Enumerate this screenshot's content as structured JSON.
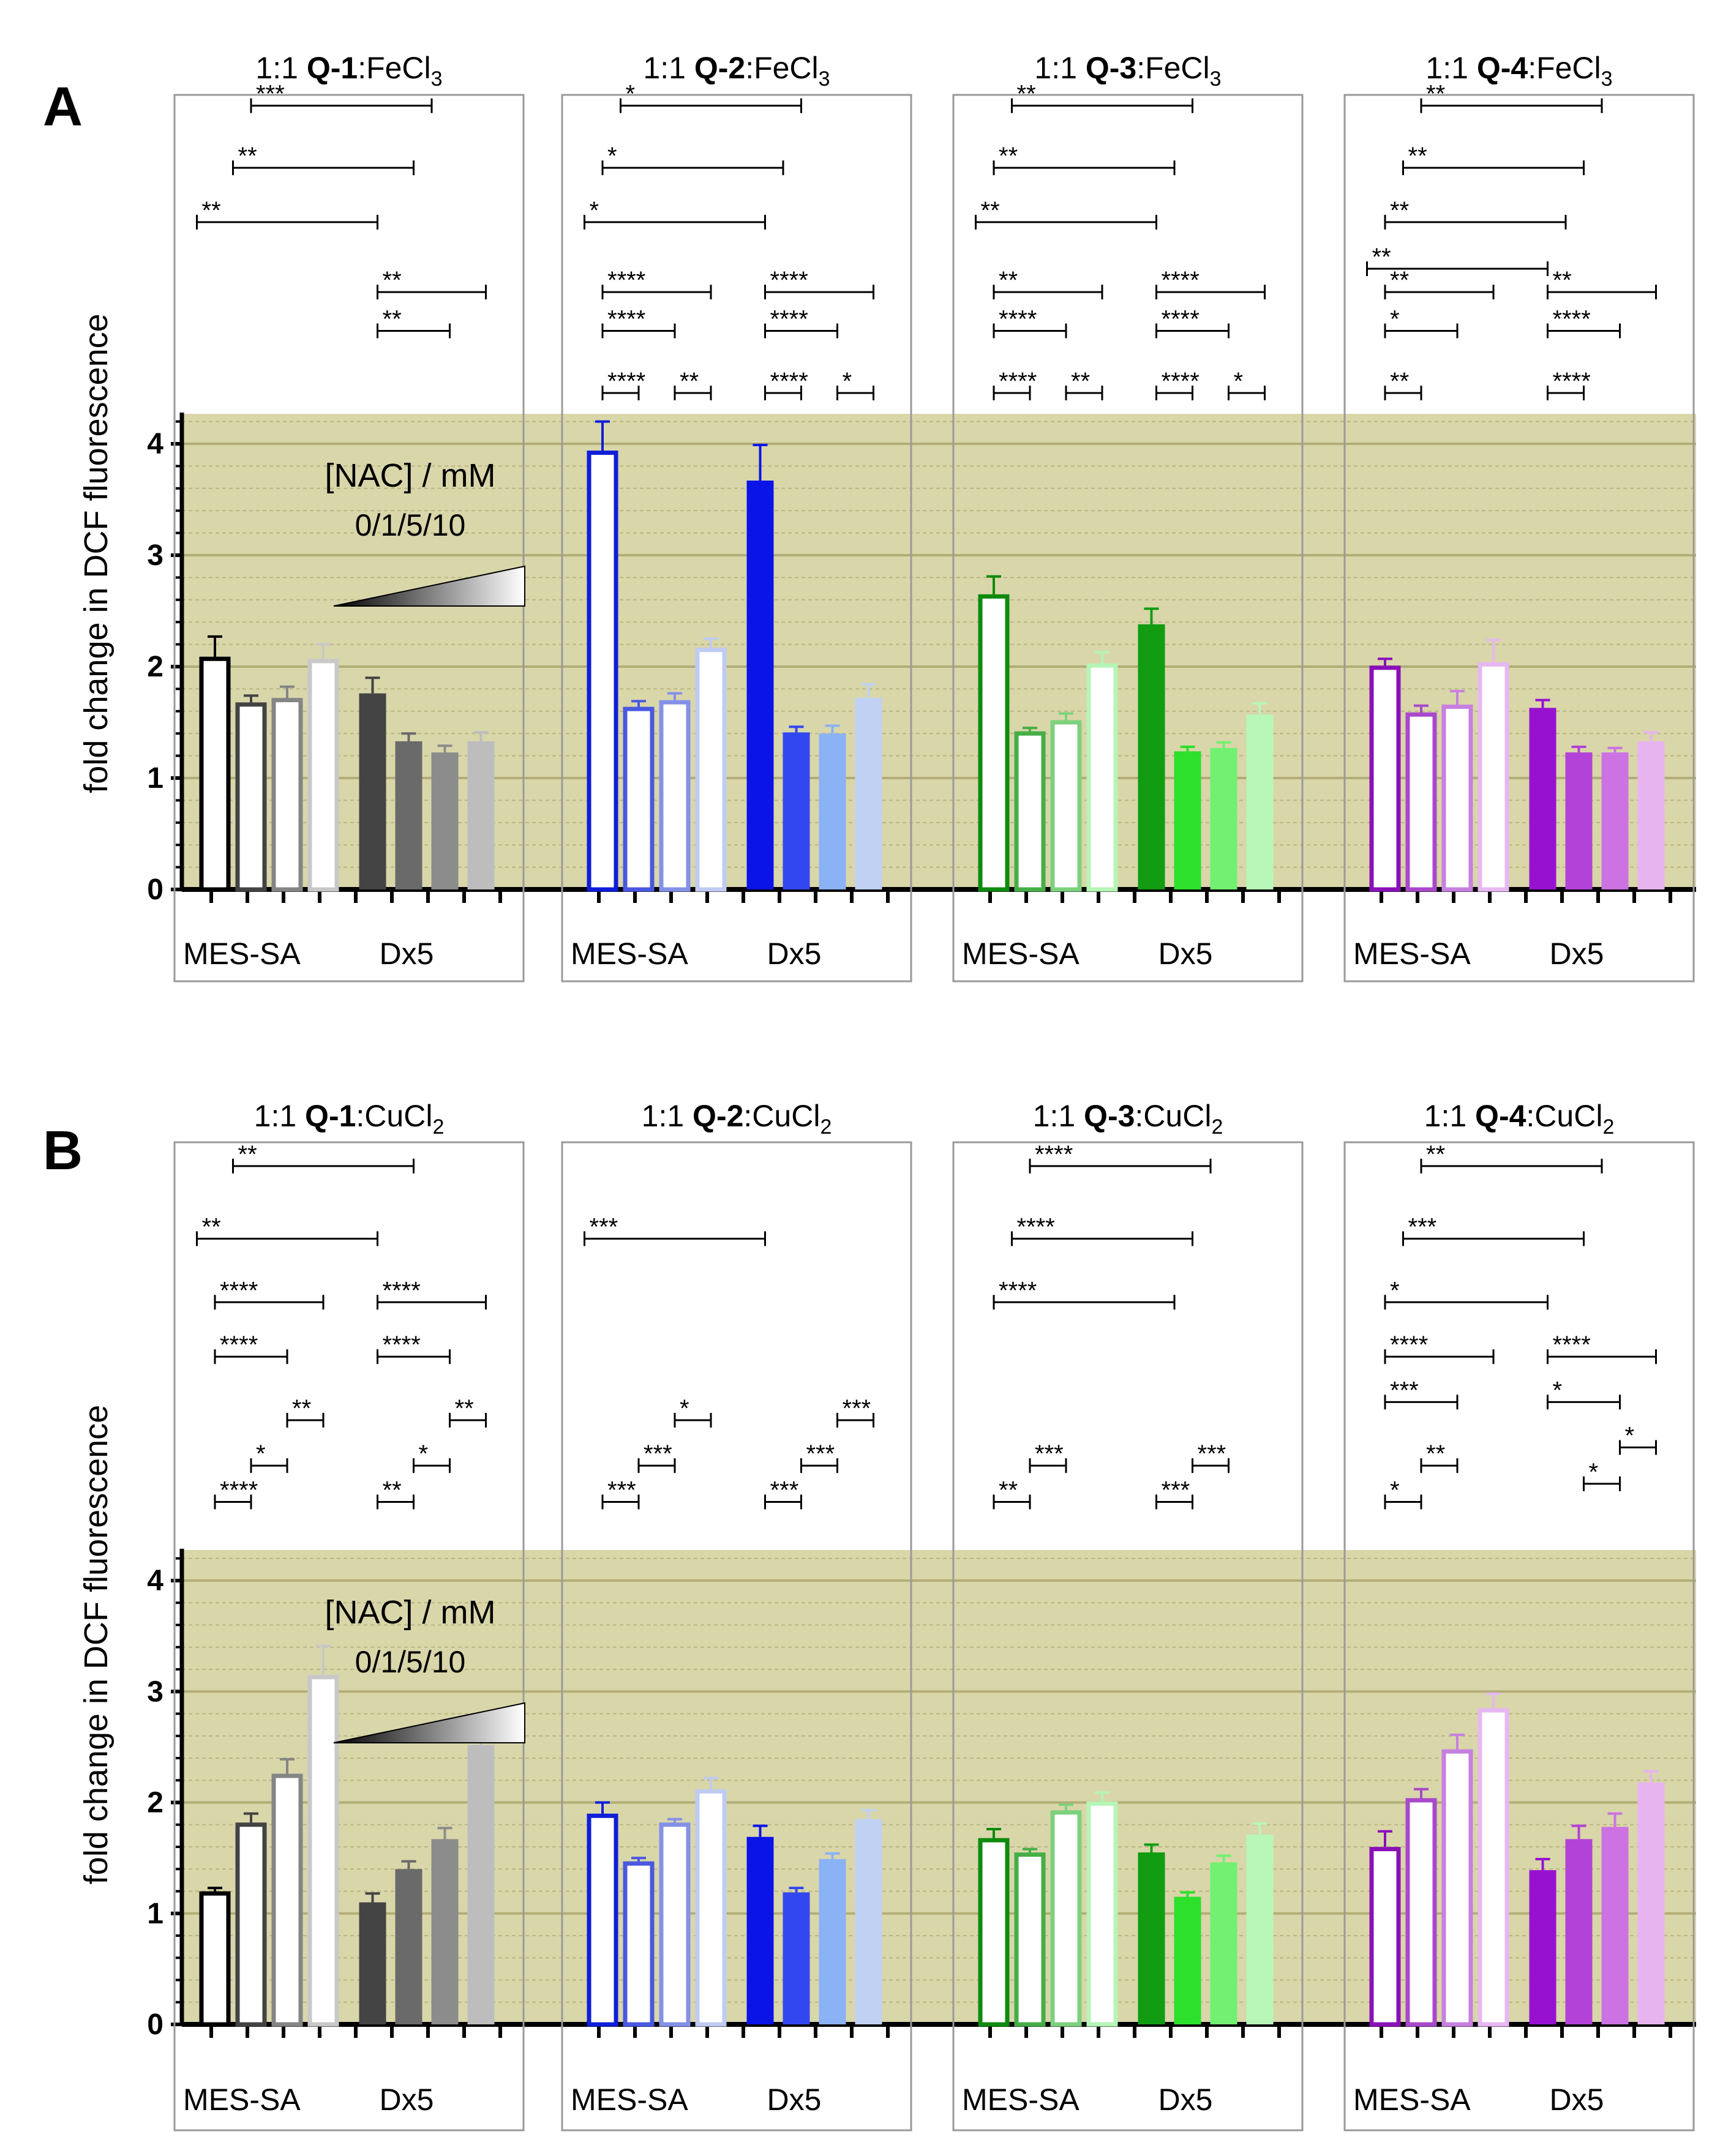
{
  "figure": {
    "nac_label": "[NAC] / mM",
    "nac_values": "0/1/5/10",
    "y_axis_label": "fold change in DCF fluorescence",
    "colors": {
      "band": "#D9D6AA",
      "gridline": "#B3AD77",
      "panel_border": "#9A9A9A"
    }
  },
  "chart_data": [
    {
      "panel": "A",
      "type": "bar",
      "ylabel": "fold change in DCF fluorescence",
      "ylim": [
        0,
        4.25
      ],
      "yticks": [
        "0",
        "1",
        "2",
        "3",
        "4"
      ],
      "legend": {
        "title": "[NAC] / mM",
        "values": "0/1/5/10"
      },
      "subpanels": [
        {
          "title_pre": "1:1 ",
          "title_bold": "Q-1",
          "title_mid": ":FeCl",
          "title_sub": "3",
          "palette": {
            "dark": "#000000",
            "light": "#C8C8C8",
            "dx": [
              "#444444",
              "#6A6A6A",
              "#8C8C8C",
              "#BDBDBD"
            ]
          },
          "groups": [
            {
              "label": "MES-SA",
              "values": [
                2.07,
                1.66,
                1.7,
                2.05
              ],
              "errors": [
                0.2,
                0.08,
                0.12,
                0.15
              ]
            },
            {
              "label": "Dx5",
              "values": [
                1.76,
                1.33,
                1.23,
                1.33
              ],
              "errors": [
                0.14,
                0.07,
                0.06,
                0.08
              ]
            }
          ],
          "annotations": [
            {
              "label": "***",
              "from": 1,
              "to": 6,
              "h": 2.0
            },
            {
              "label": "**",
              "from": 0.5,
              "to": 5.5,
              "h": 1.6
            },
            {
              "label": "**",
              "from": -0.5,
              "to": 4.5,
              "h": 1.25
            },
            {
              "label": "**",
              "from": 4.5,
              "to": 7.5,
              "h": 0.8
            },
            {
              "label": "**",
              "from": 4.5,
              "to": 6.5,
              "h": 0.55
            }
          ]
        },
        {
          "title_pre": "1:1 ",
          "title_bold": "Q-2",
          "title_mid": ":FeCl",
          "title_sub": "3",
          "palette": {
            "dark": "#0F1ED8",
            "light": "#BFCBF2",
            "dx": [
              "#0A14E6",
              "#3347F0",
              "#8BB2F4",
              "#C1D1F4"
            ]
          },
          "groups": [
            {
              "label": "MES-SA",
              "values": [
                3.92,
                1.62,
                1.68,
                2.15
              ],
              "errors": [
                0.28,
                0.07,
                0.08,
                0.1
              ]
            },
            {
              "label": "Dx5",
              "values": [
                3.67,
                1.41,
                1.4,
                1.72
              ],
              "errors": [
                0.32,
                0.05,
                0.07,
                0.12
              ]
            }
          ],
          "annotations": [
            {
              "label": "*",
              "from": 0.5,
              "to": 5.5,
              "h": 2.0
            },
            {
              "label": "*",
              "from": 0,
              "to": 5,
              "h": 1.6
            },
            {
              "label": "*",
              "from": -0.5,
              "to": 4.5,
              "h": 1.25
            },
            {
              "label": "****",
              "from": 0,
              "to": 3,
              "h": 0.8
            },
            {
              "label": "****",
              "from": 0,
              "to": 2,
              "h": 0.55
            },
            {
              "label": "****",
              "from": 0,
              "to": 1,
              "h": 0.15
            },
            {
              "label": "**",
              "from": 2,
              "to": 3,
              "h": 0.15
            },
            {
              "label": "****",
              "from": 4.5,
              "to": 7.5,
              "h": 0.8
            },
            {
              "label": "****",
              "from": 4.5,
              "to": 6.5,
              "h": 0.55
            },
            {
              "label": "****",
              "from": 4.5,
              "to": 5.5,
              "h": 0.15
            },
            {
              "label": "*",
              "from": 6.5,
              "to": 7.5,
              "h": 0.15
            }
          ]
        },
        {
          "title_pre": "1:1 ",
          "title_bold": "Q-3",
          "title_mid": ":FeCl",
          "title_sub": "3",
          "palette": {
            "dark": "#0E8A0E",
            "light": "#B5F5B5",
            "dx": [
              "#119C11",
              "#2CE02C",
              "#72F072",
              "#B8F7B8"
            ]
          },
          "groups": [
            {
              "label": "MES-SA",
              "values": [
                2.63,
                1.4,
                1.5,
                2.01
              ],
              "errors": [
                0.18,
                0.05,
                0.08,
                0.12
              ]
            },
            {
              "label": "Dx5",
              "values": [
                2.38,
                1.24,
                1.27,
                1.57
              ],
              "errors": [
                0.14,
                0.04,
                0.05,
                0.1
              ]
            }
          ],
          "annotations": [
            {
              "label": "**",
              "from": 0.5,
              "to": 5.5,
              "h": 2.0
            },
            {
              "label": "**",
              "from": 0,
              "to": 5,
              "h": 1.6
            },
            {
              "label": "**",
              "from": -0.5,
              "to": 4.5,
              "h": 1.25
            },
            {
              "label": "**",
              "from": 0,
              "to": 3,
              "h": 0.8
            },
            {
              "label": "****",
              "from": 0,
              "to": 2,
              "h": 0.55
            },
            {
              "label": "****",
              "from": 0,
              "to": 1,
              "h": 0.15
            },
            {
              "label": "**",
              "from": 2,
              "to": 3,
              "h": 0.15
            },
            {
              "label": "****",
              "from": 4.5,
              "to": 7.5,
              "h": 0.8
            },
            {
              "label": "****",
              "from": 4.5,
              "to": 6.5,
              "h": 0.55
            },
            {
              "label": "****",
              "from": 4.5,
              "to": 5.5,
              "h": 0.15
            },
            {
              "label": "*",
              "from": 6.5,
              "to": 7.5,
              "h": 0.15
            }
          ]
        },
        {
          "title_pre": "1:1 ",
          "title_bold": "Q-4",
          "title_mid": ":FeCl",
          "title_sub": "3",
          "palette": {
            "dark": "#8A10B8",
            "light": "#E6B8F2",
            "dx": [
              "#9612D0",
              "#B242D8",
              "#CC72E2",
              "#E8B4F0"
            ]
          },
          "groups": [
            {
              "label": "MES-SA",
              "values": [
                1.99,
                1.57,
                1.64,
                2.02
              ],
              "errors": [
                0.08,
                0.08,
                0.14,
                0.22
              ]
            },
            {
              "label": "Dx5",
              "values": [
                1.63,
                1.23,
                1.23,
                1.33
              ],
              "errors": [
                0.07,
                0.05,
                0.04,
                0.08
              ]
            }
          ],
          "annotations": [
            {
              "label": "**",
              "from": 1,
              "to": 6,
              "h": 2.0
            },
            {
              "label": "**",
              "from": 0.5,
              "to": 5.5,
              "h": 1.6
            },
            {
              "label": "**",
              "from": 0,
              "to": 5,
              "h": 1.25
            },
            {
              "label": "**",
              "from": -0.5,
              "to": 4.5,
              "h": 0.95
            },
            {
              "label": "**",
              "from": 0,
              "to": 3,
              "h": 0.8
            },
            {
              "label": "*",
              "from": 0,
              "to": 2,
              "h": 0.55
            },
            {
              "label": "**",
              "from": 0,
              "to": 1,
              "h": 0.15
            },
            {
              "label": "**",
              "from": 4.5,
              "to": 7.5,
              "h": 0.8
            },
            {
              "label": "****",
              "from": 4.5,
              "to": 6.5,
              "h": 0.55
            },
            {
              "label": "****",
              "from": 4.5,
              "to": 5.5,
              "h": 0.15
            }
          ]
        }
      ]
    },
    {
      "panel": "B",
      "type": "bar",
      "ylabel": "fold change in DCF fluorescence",
      "ylim": [
        0,
        4.25
      ],
      "yticks": [
        "0",
        "1",
        "2",
        "3",
        "4"
      ],
      "legend": {
        "title": "[NAC] / mM",
        "values": "0/1/5/10"
      },
      "subpanels": [
        {
          "title_pre": "1:1 ",
          "title_bold": "Q-1",
          "title_mid": ":CuCl",
          "title_sub": "2",
          "palette": {
            "dark": "#000000",
            "light": "#C8C8C8",
            "dx": [
              "#444444",
              "#6A6A6A",
              "#8C8C8C",
              "#BDBDBD"
            ]
          },
          "groups": [
            {
              "label": "MES-SA",
              "values": [
                1.18,
                1.8,
                2.24,
                3.13
              ],
              "errors": [
                0.05,
                0.1,
                0.15,
                0.28
              ]
            },
            {
              "label": "Dx5",
              "values": [
                1.1,
                1.4,
                1.67,
                2.52
              ],
              "errors": [
                0.08,
                0.07,
                0.1,
                0.23
              ]
            }
          ],
          "annotations": [
            {
              "label": "**",
              "from": 0.5,
              "to": 5.5,
              "h": 2.0
            },
            {
              "label": "**",
              "from": -0.5,
              "to": 4.5,
              "h": 1.6
            },
            {
              "label": "****",
              "from": 0,
              "to": 3,
              "h": 1.25
            },
            {
              "label": "****",
              "from": 0,
              "to": 2,
              "h": 0.95
            },
            {
              "label": "**",
              "from": 2,
              "to": 3,
              "h": 0.6
            },
            {
              "label": "*",
              "from": 1,
              "to": 2,
              "h": 0.35
            },
            {
              "label": "****",
              "from": 0,
              "to": 1,
              "h": 0.15
            },
            {
              "label": "****",
              "from": 4.5,
              "to": 7.5,
              "h": 1.25
            },
            {
              "label": "****",
              "from": 4.5,
              "to": 6.5,
              "h": 0.95
            },
            {
              "label": "**",
              "from": 6.5,
              "to": 7.5,
              "h": 0.6
            },
            {
              "label": "*",
              "from": 5.5,
              "to": 6.5,
              "h": 0.35
            },
            {
              "label": "**",
              "from": 4.5,
              "to": 5.5,
              "h": 0.15
            }
          ]
        },
        {
          "title_pre": "1:1 ",
          "title_bold": "Q-2",
          "title_mid": ":CuCl",
          "title_sub": "2",
          "palette": {
            "dark": "#0F1ED8",
            "light": "#BFCBF2",
            "dx": [
              "#0A14E6",
              "#3347F0",
              "#8BB2F4",
              "#C1D1F4"
            ]
          },
          "groups": [
            {
              "label": "MES-SA",
              "values": [
                1.88,
                1.45,
                1.8,
                2.1
              ],
              "errors": [
                0.12,
                0.05,
                0.05,
                0.12
              ]
            },
            {
              "label": "Dx5",
              "values": [
                1.69,
                1.19,
                1.49,
                1.85
              ],
              "errors": [
                0.1,
                0.04,
                0.05,
                0.08
              ]
            }
          ],
          "annotations": [
            {
              "label": "***",
              "from": -0.5,
              "to": 4.5,
              "h": 1.6
            },
            {
              "label": "*",
              "from": 2,
              "to": 3,
              "h": 0.6
            },
            {
              "label": "***",
              "from": 1,
              "to": 2,
              "h": 0.35
            },
            {
              "label": "***",
              "from": 0,
              "to": 1,
              "h": 0.15
            },
            {
              "label": "***",
              "from": 6.5,
              "to": 7.5,
              "h": 0.6
            },
            {
              "label": "***",
              "from": 5.5,
              "to": 6.5,
              "h": 0.35
            },
            {
              "label": "***",
              "from": 4.5,
              "to": 5.5,
              "h": 0.15
            }
          ]
        },
        {
          "title_pre": "1:1 ",
          "title_bold": "Q-3",
          "title_mid": ":CuCl",
          "title_sub": "2",
          "palette": {
            "dark": "#0E8A0E",
            "light": "#B5F5B5",
            "dx": [
              "#119C11",
              "#2CE02C",
              "#72F072",
              "#B8F7B8"
            ]
          },
          "groups": [
            {
              "label": "MES-SA",
              "values": [
                1.66,
                1.53,
                1.91,
                1.99
              ],
              "errors": [
                0.1,
                0.05,
                0.07,
                0.1
              ]
            },
            {
              "label": "Dx5",
              "values": [
                1.55,
                1.15,
                1.46,
                1.71
              ],
              "errors": [
                0.07,
                0.04,
                0.06,
                0.1
              ]
            }
          ],
          "annotations": [
            {
              "label": "****",
              "from": 1,
              "to": 6,
              "h": 2.0
            },
            {
              "label": "****",
              "from": 0.5,
              "to": 5.5,
              "h": 1.6
            },
            {
              "label": "****",
              "from": 0,
              "to": 5,
              "h": 1.25
            },
            {
              "label": "***",
              "from": 1,
              "to": 2,
              "h": 0.35
            },
            {
              "label": "**",
              "from": 0,
              "to": 1,
              "h": 0.15
            },
            {
              "label": "***",
              "from": 5.5,
              "to": 6.5,
              "h": 0.35
            },
            {
              "label": "***",
              "from": 4.5,
              "to": 5.5,
              "h": 0.15
            }
          ]
        },
        {
          "title_pre": "1:1 ",
          "title_bold": "Q-4",
          "title_mid": ":CuCl",
          "title_sub": "2",
          "palette": {
            "dark": "#8A10B8",
            "light": "#E6B8F2",
            "dx": [
              "#9612D0",
              "#B242D8",
              "#CC72E2",
              "#E8B4F0"
            ]
          },
          "groups": [
            {
              "label": "MES-SA",
              "values": [
                1.58,
                2.02,
                2.46,
                2.83
              ],
              "errors": [
                0.16,
                0.1,
                0.15,
                0.15
              ]
            },
            {
              "label": "Dx5",
              "values": [
                1.39,
                1.67,
                1.78,
                2.18
              ],
              "errors": [
                0.1,
                0.12,
                0.12,
                0.1
              ]
            }
          ],
          "annotations": [
            {
              "label": "**",
              "from": 1,
              "to": 6,
              "h": 2.0
            },
            {
              "label": "***",
              "from": 0.5,
              "to": 5.5,
              "h": 1.6
            },
            {
              "label": "*",
              "from": 0,
              "to": 4.5,
              "h": 1.25
            },
            {
              "label": "****",
              "from": 0,
              "to": 3,
              "h": 0.95
            },
            {
              "label": "***",
              "from": 0,
              "to": 2,
              "h": 0.7
            },
            {
              "label": "**",
              "from": 1,
              "to": 2,
              "h": 0.35
            },
            {
              "label": "*",
              "from": 0,
              "to": 1,
              "h": 0.15
            },
            {
              "label": "****",
              "from": 4.5,
              "to": 7.5,
              "h": 0.95
            },
            {
              "label": "*",
              "from": 4.5,
              "to": 6.5,
              "h": 0.7
            },
            {
              "label": "*",
              "from": 6.5,
              "to": 7.5,
              "h": 0.45
            },
            {
              "label": "*",
              "from": 5.5,
              "to": 6.5,
              "h": 0.25
            }
          ]
        }
      ]
    }
  ]
}
